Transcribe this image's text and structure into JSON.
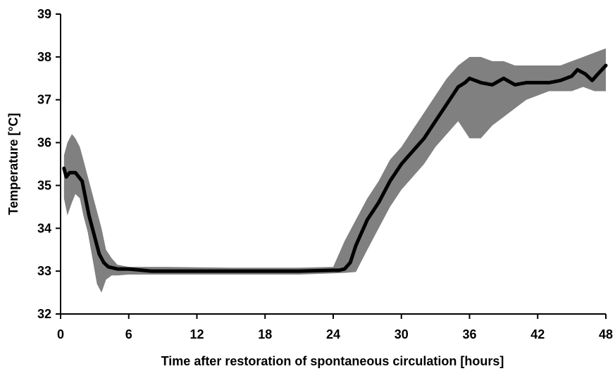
{
  "chart_data": {
    "type": "line",
    "title": "",
    "xlabel": "Time after restoration of spontaneous circulation [hours]",
    "ylabel": "Temperature [°C]",
    "xlim": [
      0,
      48
    ],
    "ylim": [
      32,
      39
    ],
    "xticks": [
      0,
      6,
      12,
      18,
      24,
      30,
      36,
      42,
      48
    ],
    "yticks": [
      32,
      33,
      34,
      35,
      36,
      37,
      38,
      39
    ],
    "grid": false,
    "legend": "none",
    "colors": {
      "mean": "#000000",
      "band": "#808080"
    },
    "series": [
      {
        "role": "mean",
        "x": [
          0.3,
          0.5,
          0.8,
          1.0,
          1.3,
          1.6,
          1.9,
          2.2,
          2.5,
          2.8,
          3.1,
          3.4,
          3.8,
          4.2,
          5.0,
          6.0,
          8.0,
          10.0,
          12.0,
          15.0,
          18.0,
          21.0,
          24.0,
          24.5,
          25.0,
          25.5,
          26.0,
          27.0,
          28.0,
          29.0,
          30.0,
          31.0,
          32.0,
          33.0,
          34.0,
          35.0,
          35.6,
          36.0,
          37.0,
          38.0,
          39.0,
          40.0,
          41.0,
          42.0,
          43.0,
          44.0,
          45.0,
          45.5,
          46.2,
          46.8,
          47.3,
          48.0
        ],
        "y": [
          35.4,
          35.2,
          35.3,
          35.3,
          35.3,
          35.2,
          35.1,
          34.7,
          34.3,
          34.0,
          33.7,
          33.4,
          33.2,
          33.1,
          33.05,
          33.05,
          33.0,
          33.0,
          33.0,
          33.0,
          33.0,
          33.0,
          33.02,
          33.02,
          33.05,
          33.2,
          33.6,
          34.2,
          34.6,
          35.1,
          35.5,
          35.8,
          36.1,
          36.5,
          36.9,
          37.3,
          37.4,
          37.5,
          37.4,
          37.35,
          37.5,
          37.35,
          37.4,
          37.4,
          37.4,
          37.45,
          37.55,
          37.7,
          37.6,
          37.45,
          37.6,
          37.8
        ]
      },
      {
        "role": "band-upper",
        "x": [
          0.3,
          0.6,
          1.0,
          1.3,
          1.7,
          2.0,
          2.4,
          2.8,
          3.2,
          3.6,
          4.0,
          4.5,
          5.0,
          6.0,
          9.0,
          15.0,
          21.0,
          24.0,
          25.0,
          26.0,
          27.0,
          28.0,
          29.0,
          30.0,
          31.0,
          32.0,
          33.0,
          34.0,
          35.0,
          36.0,
          37.0,
          38.0,
          39.0,
          40.0,
          41.0,
          42.0,
          43.0,
          44.0,
          45.0,
          46.0,
          47.0,
          48.0
        ],
        "y": [
          35.7,
          36.0,
          36.2,
          36.1,
          35.9,
          35.6,
          35.2,
          34.8,
          34.4,
          34.0,
          33.5,
          33.3,
          33.15,
          33.1,
          33.1,
          33.08,
          33.08,
          33.1,
          33.7,
          34.2,
          34.7,
          35.1,
          35.6,
          35.9,
          36.3,
          36.7,
          37.1,
          37.5,
          37.8,
          38.0,
          38.0,
          37.9,
          37.9,
          37.8,
          37.8,
          37.8,
          37.8,
          37.8,
          37.9,
          38.0,
          38.1,
          38.2
        ]
      },
      {
        "role": "band-lower",
        "x": [
          0.3,
          0.6,
          1.0,
          1.3,
          1.7,
          2.0,
          2.4,
          2.8,
          3.2,
          3.6,
          4.0,
          4.5,
          5.0,
          6.0,
          9.0,
          15.0,
          21.0,
          24.0,
          25.0,
          26.0,
          27.0,
          28.0,
          29.0,
          30.0,
          31.0,
          32.0,
          33.0,
          34.0,
          35.0,
          36.0,
          37.0,
          38.0,
          39.0,
          40.0,
          41.0,
          42.0,
          43.0,
          44.0,
          45.0,
          46.0,
          47.0,
          48.0
        ],
        "y": [
          34.7,
          34.3,
          34.6,
          34.8,
          34.7,
          34.3,
          33.9,
          33.3,
          32.7,
          32.5,
          32.8,
          32.9,
          32.9,
          32.92,
          32.92,
          32.92,
          32.92,
          32.95,
          32.96,
          32.98,
          33.5,
          34.0,
          34.5,
          34.9,
          35.2,
          35.5,
          35.9,
          36.2,
          36.5,
          36.1,
          36.1,
          36.4,
          36.6,
          36.8,
          37.0,
          37.1,
          37.2,
          37.2,
          37.2,
          37.3,
          37.2,
          37.2
        ]
      }
    ]
  }
}
